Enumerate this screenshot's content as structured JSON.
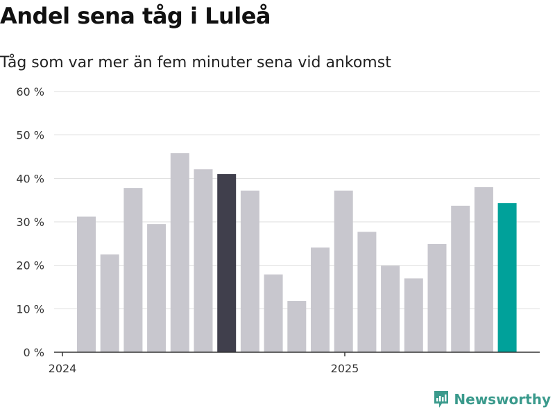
{
  "title": "Andel sena tåg i Luleå",
  "subtitle": "Tåg som var mer än fem minuter sena vid ankomst",
  "brand": "Newsworthy",
  "colors": {
    "bar": "#c8c7ce",
    "highlight_dark": "#403f4c",
    "highlight_latest": "#00a19a",
    "grid": "#dddddd",
    "axis": "#333333",
    "brand": "#3a9a8c"
  },
  "chart_data": {
    "type": "bar",
    "title": "Andel sena tåg i Luleå",
    "subtitle": "Tåg som var mer än fem minuter sena vid ankomst",
    "x_tick_labels": [
      "2024",
      "2025"
    ],
    "y_tick_labels": [
      "0 %",
      "10 %",
      "20 %",
      "30 %",
      "40 %",
      "50 %",
      "60 %"
    ],
    "ylim": [
      0,
      60
    ],
    "grid": true,
    "values": [
      31.2,
      22.5,
      37.8,
      29.5,
      45.8,
      42.1,
      41.0,
      37.2,
      17.9,
      11.8,
      24.1,
      37.2,
      27.7,
      19.9,
      17.0,
      24.9,
      33.7,
      38.0,
      34.3
    ],
    "highlight_dark_index": 6,
    "highlight_latest_index": 18
  }
}
